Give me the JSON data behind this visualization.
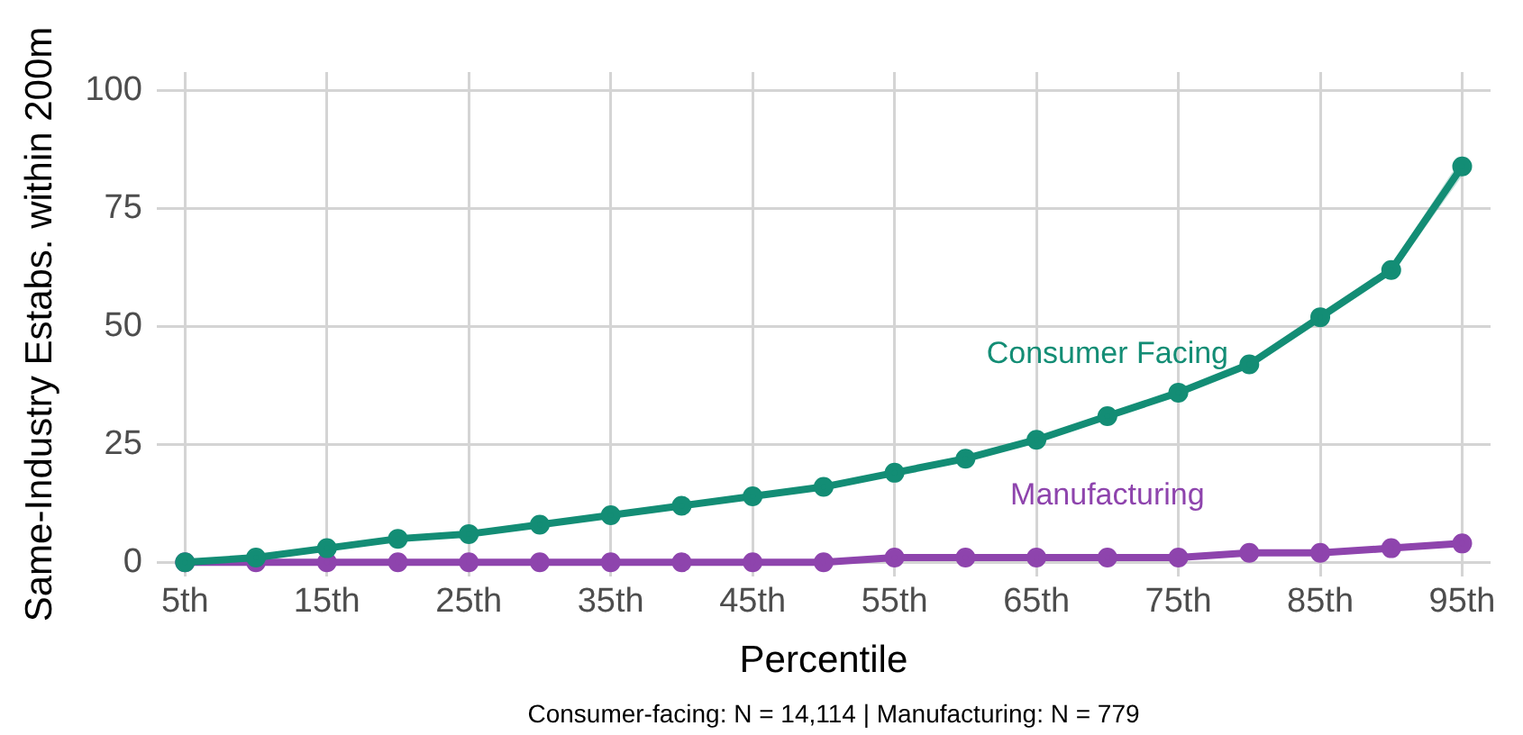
{
  "chart_data": {
    "type": "line",
    "xlabel": "Percentile",
    "ylabel": "Same-Industry Estabs. within 200m",
    "x": [
      5,
      10,
      15,
      20,
      25,
      30,
      35,
      40,
      45,
      50,
      55,
      60,
      65,
      70,
      75,
      80,
      85,
      90,
      95
    ],
    "series": [
      {
        "name": "Consumer Facing",
        "color": "#138d75",
        "values": [
          0,
          1,
          3,
          5,
          6,
          8,
          10,
          12,
          14,
          16,
          19,
          22,
          26,
          31,
          36,
          42,
          52,
          62,
          84
        ],
        "lower": [
          0,
          1,
          3,
          5,
          6,
          8,
          10,
          12,
          14,
          16,
          19,
          22,
          26,
          31,
          36,
          42,
          52,
          61,
          82
        ],
        "upper": [
          0,
          1,
          3,
          5,
          6,
          8,
          10,
          12,
          14,
          16,
          19,
          22,
          26,
          31,
          36,
          42,
          52,
          63,
          86
        ]
      },
      {
        "name": "Manufacturing",
        "color": "#8e44ad",
        "values": [
          0,
          0,
          0,
          0,
          0,
          0,
          0,
          0,
          0,
          0,
          1,
          1,
          1,
          1,
          1,
          2,
          2,
          3,
          4
        ]
      }
    ],
    "xlim": [
      3,
      97
    ],
    "xticks": [
      {
        "value": 5,
        "label": "5th"
      },
      {
        "value": 15,
        "label": "15th"
      },
      {
        "value": 25,
        "label": "25th"
      },
      {
        "value": 35,
        "label": "35th"
      },
      {
        "value": 45,
        "label": "45th"
      },
      {
        "value": 55,
        "label": "55th"
      },
      {
        "value": 65,
        "label": "65th"
      },
      {
        "value": 75,
        "label": "75th"
      },
      {
        "value": 85,
        "label": "85th"
      },
      {
        "value": 95,
        "label": "95th"
      }
    ],
    "ylim": [
      -3,
      104
    ],
    "yticks": [
      0,
      25,
      50,
      75,
      100
    ],
    "grid": true,
    "legend": false,
    "marker": "circle",
    "line_style": "solid",
    "annotations": [
      "Consumer-facing: N = 14,114 | Manufacturing: N = 779"
    ]
  }
}
